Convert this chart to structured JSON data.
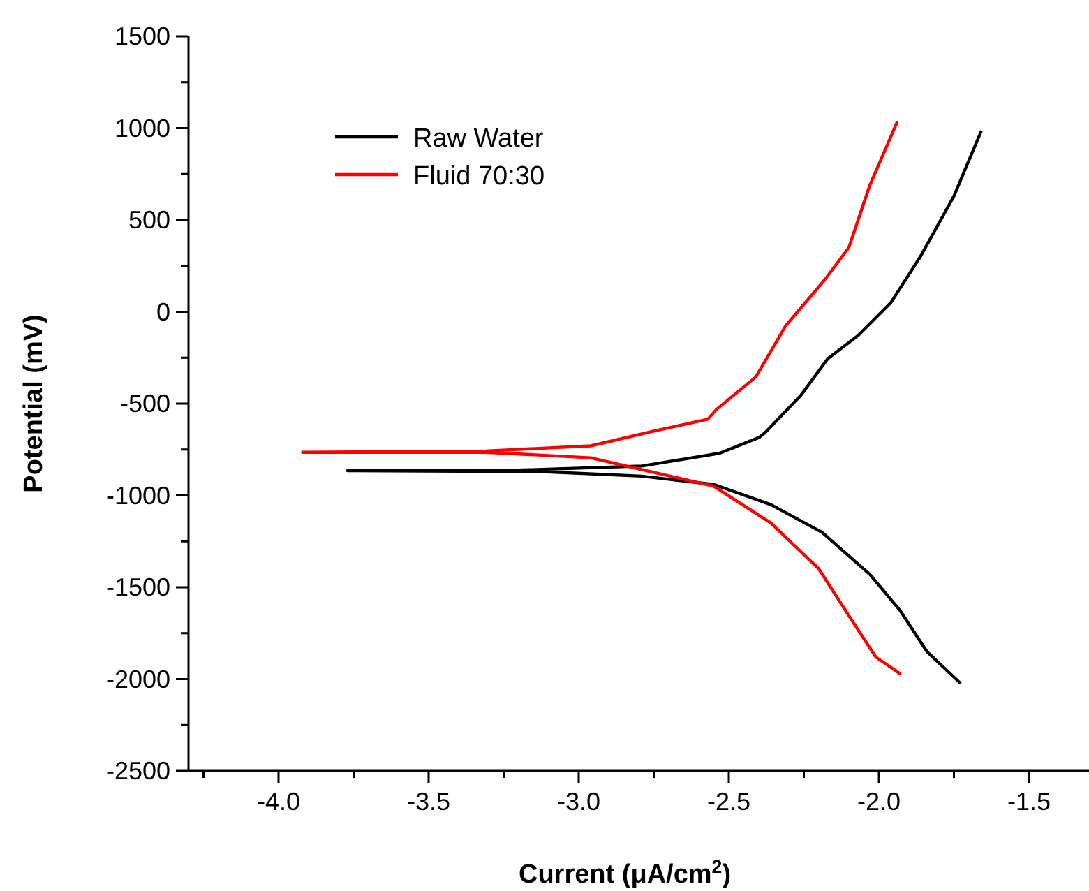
{
  "chart_data": {
    "type": "line",
    "xlabel": "Current (μA/cm$^{2}$)",
    "ylabel": "Potential (mV)",
    "xlim": [
      -4.3,
      -1.3
    ],
    "ylim": [
      -2500,
      1500
    ],
    "xticks": [
      {
        "value": -4.25,
        "label": null
      },
      {
        "value": -4.0,
        "label": "-4.0"
      },
      {
        "value": -3.75,
        "label": null
      },
      -3.5,
      {
        "value": -3.25,
        "label": null
      },
      {
        "value": -3.0,
        "label": "-3.0"
      },
      {
        "value": -2.75,
        "label": null
      },
      -2.5,
      {
        "value": -2.25,
        "label": null
      },
      {
        "value": -2.0,
        "label": "-2.0"
      },
      {
        "value": -1.75,
        "label": null
      },
      -1.5
    ],
    "yticks": [
      -2500,
      {
        "value": -2250,
        "label": null
      },
      -2000,
      {
        "value": -1750,
        "label": null
      },
      -1500,
      {
        "value": -1250,
        "label": null
      },
      -1000,
      {
        "value": -750,
        "label": null
      },
      -500,
      {
        "value": -250,
        "label": null
      },
      0,
      {
        "value": 250,
        "label": null
      },
      500,
      {
        "value": 750,
        "label": null
      },
      1000,
      {
        "value": 1250,
        "label": null
      },
      1500
    ],
    "legend": "top left",
    "line_style": "solid",
    "grid": false,
    "series": [
      {
        "name": "Raw Water",
        "color": "#000000",
        "x": [
          -1.73,
          -1.84,
          -1.93,
          -2.03,
          -2.19,
          -2.36,
          -2.55,
          -2.79,
          -3.13,
          -3.77,
          -3.2,
          -2.79,
          -2.53,
          -2.4,
          -2.38,
          -2.26,
          -2.17,
          -2.07,
          -1.96,
          -1.86,
          -1.75,
          -1.66
        ],
        "values": [
          -2020,
          -1850,
          -1625,
          -1430,
          -1200,
          -1050,
          -940,
          -895,
          -870,
          -865,
          -862,
          -840,
          -770,
          -685,
          -660,
          -455,
          -255,
          -130,
          50,
          305,
          630,
          980
        ]
      },
      {
        "name": "Fluid 70:30",
        "color": "#ff0000",
        "x": [
          -1.93,
          -2.01,
          -2.1,
          -2.2,
          -2.36,
          -2.55,
          -2.96,
          -3.31,
          -3.92,
          -3.31,
          -2.96,
          -2.75,
          -2.57,
          -2.54,
          -2.41,
          -2.31,
          -2.18,
          -2.1,
          -2.03,
          -1.94
        ],
        "values": [
          -1970,
          -1880,
          -1655,
          -1400,
          -1150,
          -950,
          -795,
          -765,
          -765,
          -758,
          -730,
          -650,
          -585,
          -530,
          -355,
          -75,
          175,
          350,
          690,
          1030
        ]
      }
    ]
  }
}
